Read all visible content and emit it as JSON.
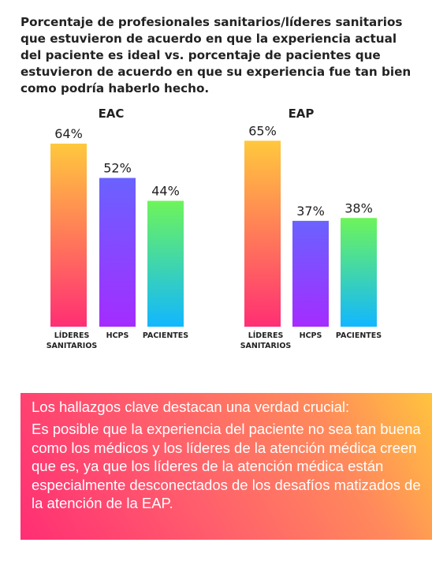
{
  "title": "Porcentaje de profesionales sanitarios/líderes sanitarios que estuvieron de acuerdo en que la experiencia actual del paciente es ideal vs. porcentaje de pacientes que estuvieron de acuerdo en que su experiencia fue tan bien como podría haberlo hecho.",
  "chart_data": [
    {
      "type": "bar",
      "title": "EAC",
      "categories": [
        "LÍDERES SANITARIOS",
        "HCPS",
        "PACIENTES"
      ],
      "values": [
        64,
        52,
        44
      ],
      "labels": [
        "64%",
        "52%",
        "44%"
      ],
      "ylim": [
        0,
        70
      ],
      "grid": false,
      "legend": "none"
    },
    {
      "type": "bar",
      "title": "EAP",
      "categories": [
        "LÍDERES SANITARIOS",
        "HCPS",
        "PACIENTES"
      ],
      "values": [
        65,
        37,
        38
      ],
      "labels": [
        "65%",
        "37%",
        "38%"
      ],
      "ylim": [
        0,
        70
      ],
      "grid": false,
      "legend": "none"
    }
  ],
  "bar_gradients": [
    [
      "#ffc83d",
      "#ff2f74"
    ],
    [
      "#6a62ff",
      "#a42cff"
    ],
    [
      "#6ef45a",
      "#12b7ff"
    ]
  ],
  "callout": {
    "heading": "Los hallazgos clave destacan una verdad crucial:",
    "body": "Es posible que la experiencia del paciente no sea tan buena como los médicos y los líderes de la atención médica creen que es, ya que los líderes de la atención médica están especialmente desconectados de los desafíos matizados de la atención de la EAP."
  }
}
